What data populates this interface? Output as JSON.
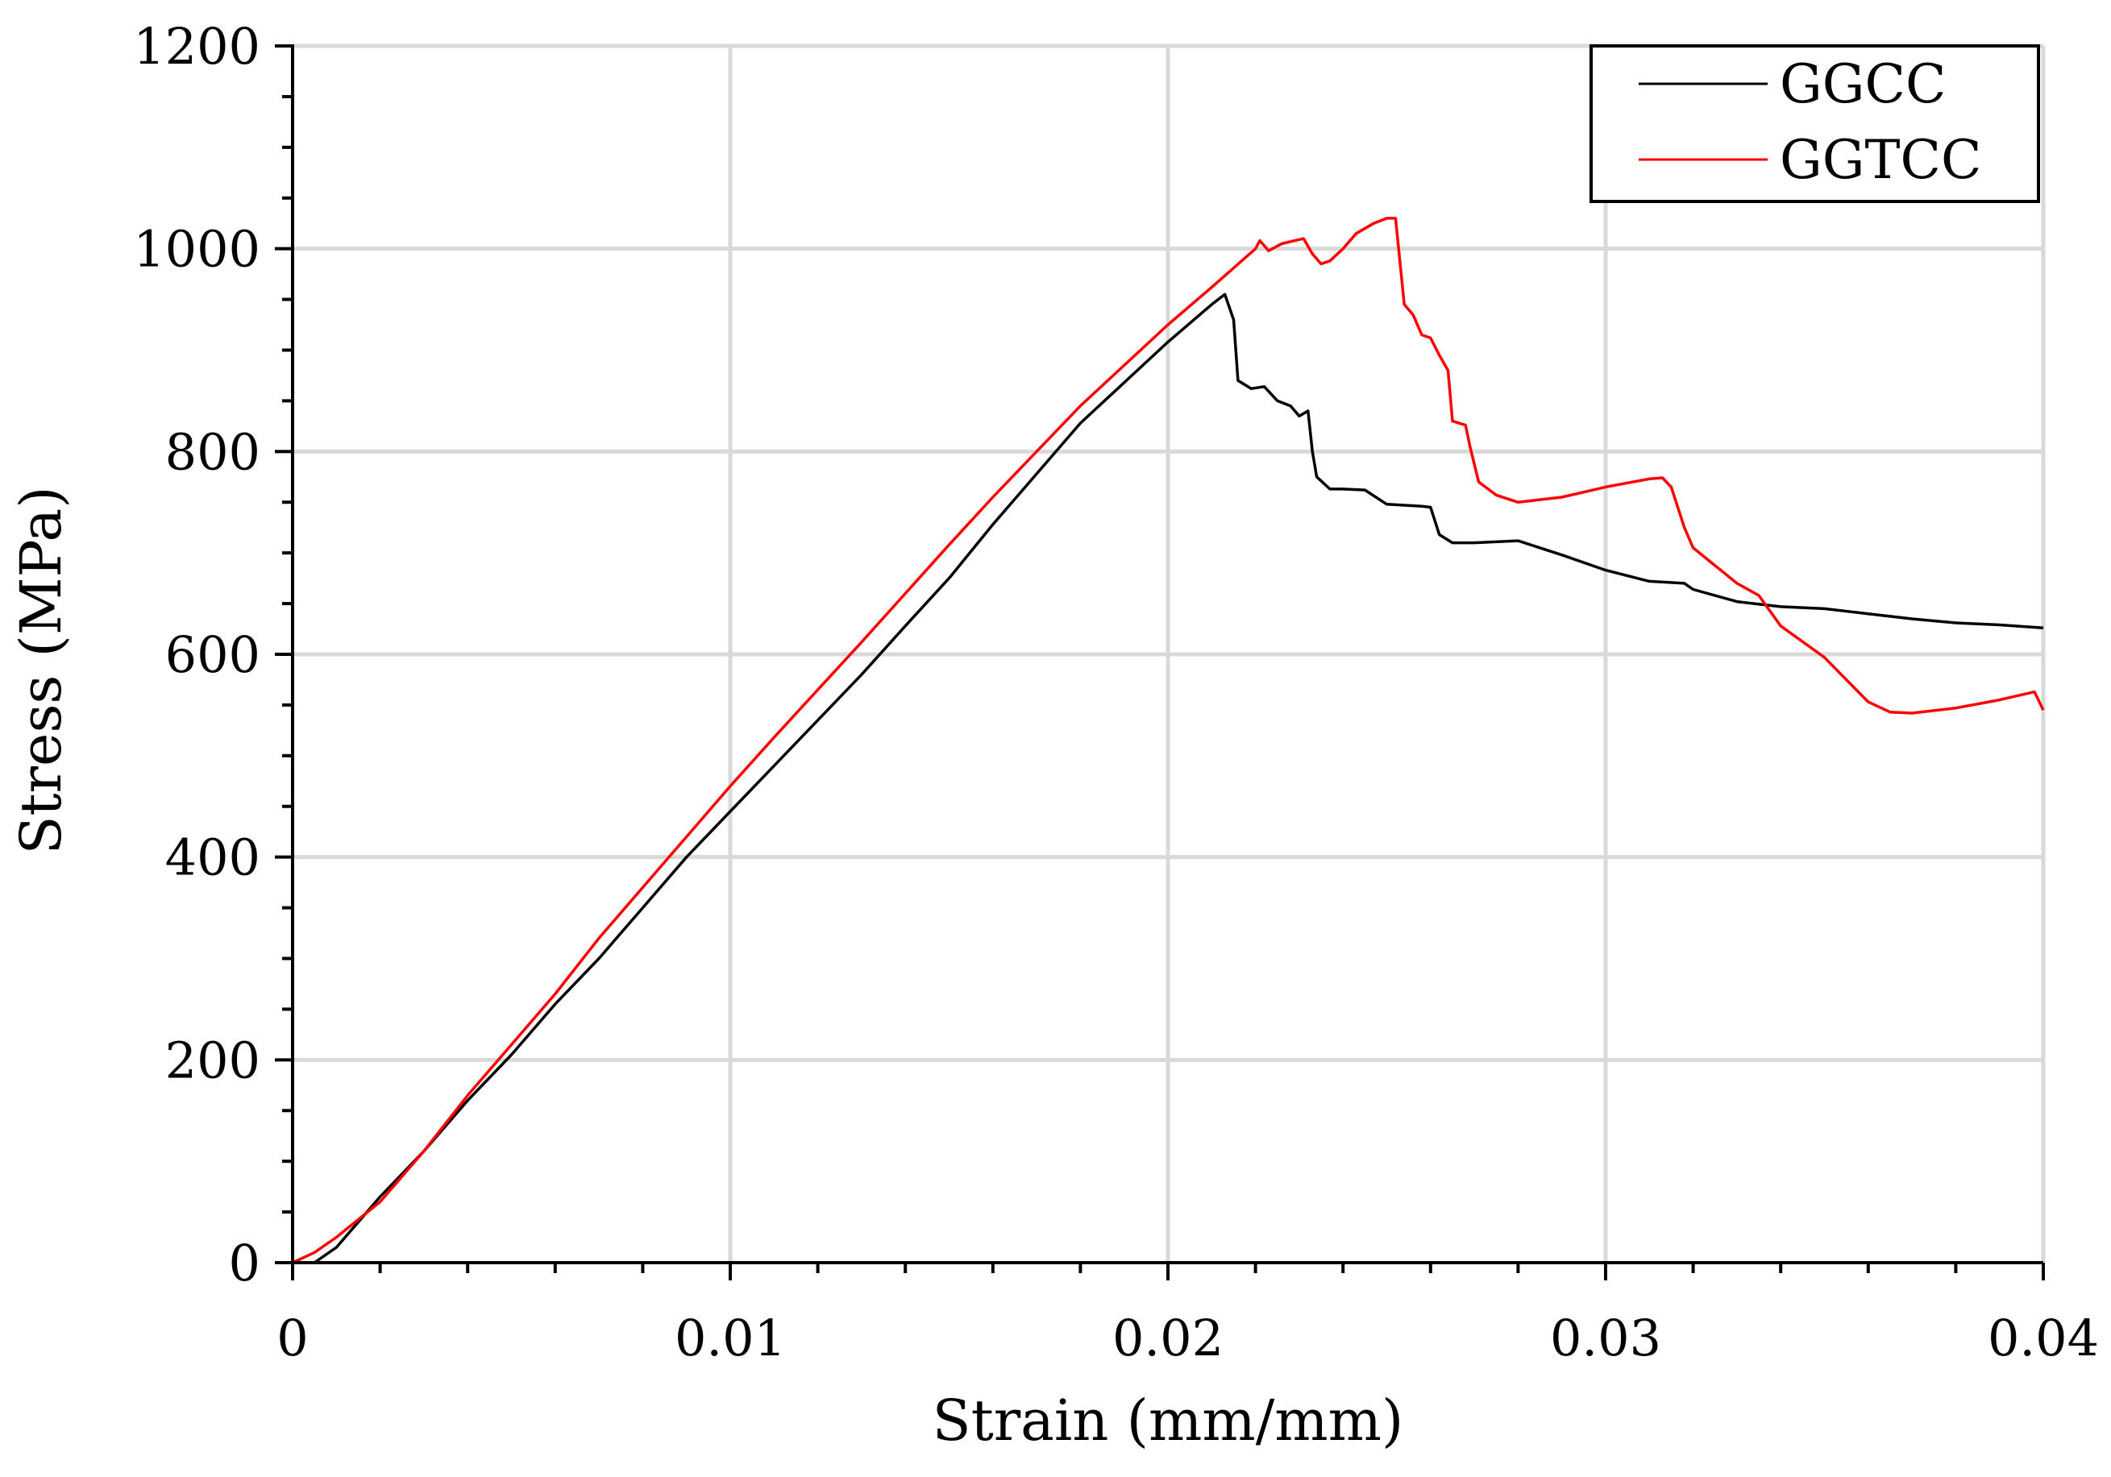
{
  "chart_data": {
    "type": "line",
    "title": "",
    "xlabel": "Strain (mm/mm)",
    "ylabel": "Stress (MPa)",
    "xlim": [
      0,
      0.04
    ],
    "ylim": [
      0,
      1200
    ],
    "x_ticks": [
      0,
      0.01,
      0.02,
      0.03,
      0.04
    ],
    "x_tick_labels": [
      "0",
      "0.01",
      "0.02",
      "0.03",
      "0.04"
    ],
    "y_ticks": [
      0,
      200,
      400,
      600,
      800,
      1000,
      1200
    ],
    "y_tick_labels": [
      "0",
      "200",
      "400",
      "600",
      "800",
      "1000",
      "1200"
    ],
    "grid": true,
    "legend_position": "top-right",
    "series": [
      {
        "name": "GGCC",
        "color": "#000000",
        "points": [
          [
            0,
            0
          ],
          [
            0.0005,
            0
          ],
          [
            0.001,
            15
          ],
          [
            0.0015,
            40
          ],
          [
            0.002,
            65
          ],
          [
            0.003,
            110
          ],
          [
            0.004,
            160
          ],
          [
            0.005,
            205
          ],
          [
            0.006,
            255
          ],
          [
            0.007,
            300
          ],
          [
            0.008,
            350
          ],
          [
            0.009,
            400
          ],
          [
            0.01,
            445
          ],
          [
            0.011,
            490
          ],
          [
            0.012,
            535
          ],
          [
            0.013,
            580
          ],
          [
            0.014,
            628
          ],
          [
            0.015,
            675
          ],
          [
            0.016,
            728
          ],
          [
            0.017,
            778
          ],
          [
            0.018,
            828
          ],
          [
            0.019,
            868
          ],
          [
            0.02,
            908
          ],
          [
            0.021,
            945
          ],
          [
            0.0213,
            955
          ],
          [
            0.0215,
            930
          ],
          [
            0.0216,
            870
          ],
          [
            0.0219,
            862
          ],
          [
            0.0222,
            864
          ],
          [
            0.0225,
            850
          ],
          [
            0.0228,
            845
          ],
          [
            0.023,
            835
          ],
          [
            0.0232,
            840
          ],
          [
            0.0233,
            800
          ],
          [
            0.0234,
            775
          ],
          [
            0.0237,
            763
          ],
          [
            0.024,
            763
          ],
          [
            0.0245,
            762
          ],
          [
            0.025,
            748
          ],
          [
            0.0258,
            746
          ],
          [
            0.026,
            745
          ],
          [
            0.0262,
            718
          ],
          [
            0.0265,
            710
          ],
          [
            0.027,
            710
          ],
          [
            0.028,
            712
          ],
          [
            0.029,
            698
          ],
          [
            0.03,
            683
          ],
          [
            0.031,
            672
          ],
          [
            0.0318,
            670
          ],
          [
            0.032,
            664
          ],
          [
            0.033,
            652
          ],
          [
            0.034,
            647
          ],
          [
            0.035,
            645
          ],
          [
            0.036,
            640
          ],
          [
            0.037,
            635
          ],
          [
            0.038,
            631
          ],
          [
            0.039,
            629
          ],
          [
            0.04,
            626
          ]
        ]
      },
      {
        "name": "GGTCC",
        "color": "#ff0000",
        "points": [
          [
            0,
            0
          ],
          [
            0.0005,
            10
          ],
          [
            0.001,
            25
          ],
          [
            0.002,
            60
          ],
          [
            0.003,
            110
          ],
          [
            0.004,
            165
          ],
          [
            0.005,
            215
          ],
          [
            0.006,
            265
          ],
          [
            0.007,
            320
          ],
          [
            0.008,
            370
          ],
          [
            0.009,
            420
          ],
          [
            0.01,
            470
          ],
          [
            0.011,
            518
          ],
          [
            0.012,
            565
          ],
          [
            0.013,
            612
          ],
          [
            0.014,
            660
          ],
          [
            0.015,
            708
          ],
          [
            0.016,
            755
          ],
          [
            0.017,
            800
          ],
          [
            0.018,
            845
          ],
          [
            0.019,
            885
          ],
          [
            0.02,
            925
          ],
          [
            0.021,
            962
          ],
          [
            0.022,
            1000
          ],
          [
            0.0221,
            1008
          ],
          [
            0.0223,
            998
          ],
          [
            0.0226,
            1005
          ],
          [
            0.0229,
            1008
          ],
          [
            0.0231,
            1010
          ],
          [
            0.0233,
            995
          ],
          [
            0.0235,
            985
          ],
          [
            0.0237,
            988
          ],
          [
            0.024,
            1000
          ],
          [
            0.0243,
            1015
          ],
          [
            0.0247,
            1025
          ],
          [
            0.025,
            1030
          ],
          [
            0.0252,
            1030
          ],
          [
            0.0254,
            945
          ],
          [
            0.0256,
            935
          ],
          [
            0.0258,
            915
          ],
          [
            0.026,
            912
          ],
          [
            0.0262,
            895
          ],
          [
            0.0264,
            880
          ],
          [
            0.0265,
            830
          ],
          [
            0.0268,
            826
          ],
          [
            0.0269,
            805
          ],
          [
            0.0271,
            770
          ],
          [
            0.0275,
            757
          ],
          [
            0.028,
            750
          ],
          [
            0.029,
            755
          ],
          [
            0.03,
            765
          ],
          [
            0.031,
            773
          ],
          [
            0.0313,
            774
          ],
          [
            0.0315,
            765
          ],
          [
            0.0318,
            725
          ],
          [
            0.032,
            705
          ],
          [
            0.033,
            670
          ],
          [
            0.0335,
            658
          ],
          [
            0.034,
            628
          ],
          [
            0.035,
            597
          ],
          [
            0.0355,
            575
          ],
          [
            0.036,
            553
          ],
          [
            0.0365,
            543
          ],
          [
            0.037,
            542
          ],
          [
            0.038,
            547
          ],
          [
            0.039,
            555
          ],
          [
            0.0398,
            563
          ],
          [
            0.04,
            545
          ]
        ]
      }
    ]
  }
}
